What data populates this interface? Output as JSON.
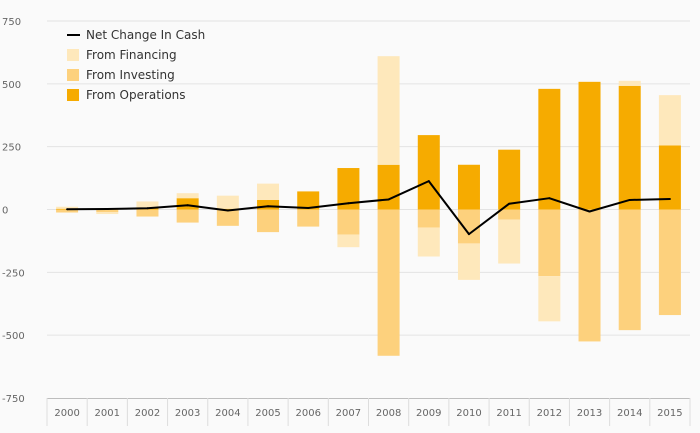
{
  "chart_data": {
    "type": "bar",
    "title": "",
    "xlabel": "",
    "ylabel": "",
    "ylim": [
      -750,
      750
    ],
    "yticks": [
      750,
      500,
      250,
      0,
      -250,
      -500,
      -750
    ],
    "grid": true,
    "legend_position": "top-left",
    "categories": [
      "2000",
      "2001",
      "2002",
      "2003",
      "2004",
      "2005",
      "2006",
      "2007",
      "2008",
      "2009",
      "2010",
      "2011",
      "2012",
      "2013",
      "2014",
      "2015"
    ],
    "series": [
      {
        "name": "From Operations",
        "kind": "bar",
        "color": "#f6ab00",
        "values": [
          3,
          2,
          4,
          45,
          3,
          38,
          72,
          165,
          178,
          296,
          178,
          238,
          480,
          508,
          492,
          255
        ]
      },
      {
        "name": "From Investing",
        "kind": "bar",
        "color": "#fdd17d",
        "values": [
          -12,
          -10,
          -28,
          -52,
          -65,
          -90,
          -68,
          -100,
          -582,
          -72,
          -135,
          -40,
          -265,
          -525,
          -480,
          -420
        ]
      },
      {
        "name": "From Financing",
        "kind": "bar",
        "color": "#fee8bb",
        "values": [
          8,
          -8,
          28,
          20,
          52,
          65,
          0,
          -50,
          432,
          -115,
          -145,
          -175,
          -180,
          0,
          20,
          200
        ]
      },
      {
        "name": "Net Change In Cash",
        "kind": "line",
        "color": "#000000",
        "values": [
          1,
          2,
          5,
          17,
          -4,
          13,
          6,
          25,
          40,
          113,
          -98,
          23,
          45,
          -8,
          38,
          42
        ]
      }
    ],
    "legend_order": [
      "Net Change In Cash",
      "From Financing",
      "From Investing",
      "From Operations"
    ]
  }
}
